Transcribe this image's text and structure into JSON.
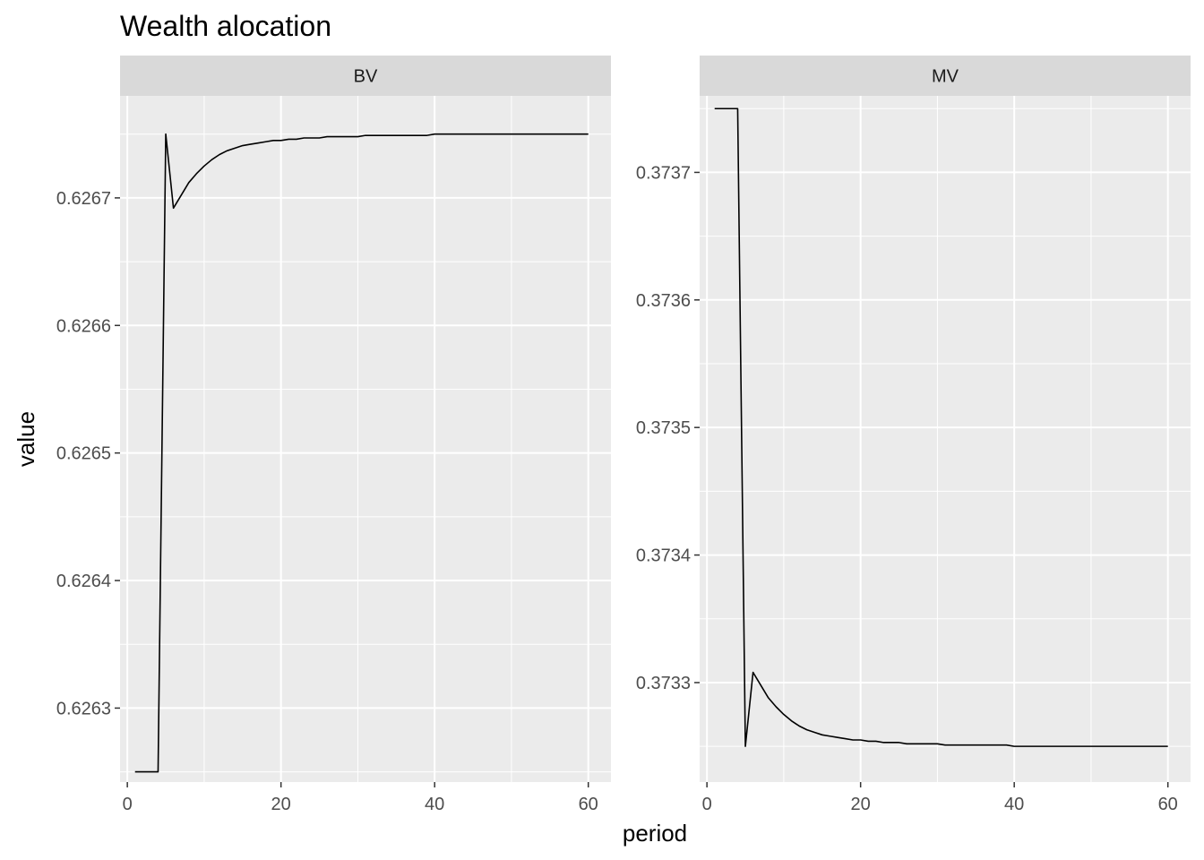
{
  "chart_data": {
    "type": "line",
    "title": "Wealth alocation",
    "xlabel": "period",
    "ylabel": "value",
    "colors": {
      "panel_bg": "#ebebeb",
      "strip_bg": "#d9d9d9",
      "grid": "#ffffff",
      "line": "#000000"
    },
    "panels": [
      {
        "strip": "BV",
        "xlim": [
          -0.95,
          62.95
        ],
        "xticks": [
          0,
          20,
          40,
          60
        ],
        "xtick_labels": [
          "0",
          "20",
          "40",
          "60"
        ],
        "ylim": [
          0.626242,
          0.62678
        ],
        "yticks": [
          0.6263,
          0.6264,
          0.6265,
          0.6266,
          0.6267
        ],
        "ytick_labels": [
          "0.6263",
          "0.6264",
          "0.6265",
          "0.6266",
          "0.6267"
        ],
        "x": [
          1,
          2,
          3,
          4,
          5,
          6,
          7,
          8,
          9,
          10,
          11,
          12,
          13,
          14,
          15,
          16,
          17,
          18,
          19,
          20,
          21,
          22,
          23,
          24,
          25,
          26,
          27,
          28,
          29,
          30,
          31,
          32,
          33,
          34,
          35,
          36,
          37,
          38,
          39,
          40,
          41,
          42,
          43,
          44,
          45,
          46,
          47,
          48,
          49,
          50,
          51,
          52,
          53,
          54,
          55,
          56,
          57,
          58,
          59,
          60
        ],
        "y": [
          0.62625,
          0.62625,
          0.62625,
          0.62625,
          0.62675,
          0.626692,
          0.626702,
          0.626712,
          0.626719,
          0.626725,
          0.62673,
          0.626734,
          0.626737,
          0.626739,
          0.626741,
          0.626742,
          0.626743,
          0.626744,
          0.626745,
          0.626745,
          0.626746,
          0.626746,
          0.626747,
          0.626747,
          0.626747,
          0.626748,
          0.626748,
          0.626748,
          0.626748,
          0.626748,
          0.626749,
          0.626749,
          0.626749,
          0.626749,
          0.626749,
          0.626749,
          0.626749,
          0.626749,
          0.626749,
          0.62675,
          0.62675,
          0.62675,
          0.62675,
          0.62675,
          0.62675,
          0.62675,
          0.62675,
          0.62675,
          0.62675,
          0.62675,
          0.62675,
          0.62675,
          0.62675,
          0.62675,
          0.62675,
          0.62675,
          0.62675,
          0.62675,
          0.62675,
          0.62675
        ]
      },
      {
        "strip": "MV",
        "xlim": [
          -0.95,
          62.95
        ],
        "xticks": [
          0,
          20,
          40,
          60
        ],
        "xtick_labels": [
          "0",
          "20",
          "40",
          "60"
        ],
        "ylim": [
          0.373222,
          0.37376
        ],
        "yticks": [
          0.3733,
          0.3734,
          0.3735,
          0.3736,
          0.3737
        ],
        "ytick_labels": [
          "0.3733",
          "0.3734",
          "0.3735",
          "0.3736",
          "0.3737"
        ],
        "x": [
          1,
          2,
          3,
          4,
          5,
          6,
          7,
          8,
          9,
          10,
          11,
          12,
          13,
          14,
          15,
          16,
          17,
          18,
          19,
          20,
          21,
          22,
          23,
          24,
          25,
          26,
          27,
          28,
          29,
          30,
          31,
          32,
          33,
          34,
          35,
          36,
          37,
          38,
          39,
          40,
          41,
          42,
          43,
          44,
          45,
          46,
          47,
          48,
          49,
          50,
          51,
          52,
          53,
          54,
          55,
          56,
          57,
          58,
          59,
          60
        ],
        "y": [
          0.37375,
          0.37375,
          0.37375,
          0.37375,
          0.37325,
          0.373308,
          0.373298,
          0.373288,
          0.373281,
          0.373275,
          0.37327,
          0.373266,
          0.373263,
          0.373261,
          0.373259,
          0.373258,
          0.373257,
          0.373256,
          0.373255,
          0.373255,
          0.373254,
          0.373254,
          0.373253,
          0.373253,
          0.373253,
          0.373252,
          0.373252,
          0.373252,
          0.373252,
          0.373252,
          0.373251,
          0.373251,
          0.373251,
          0.373251,
          0.373251,
          0.373251,
          0.373251,
          0.373251,
          0.373251,
          0.37325,
          0.37325,
          0.37325,
          0.37325,
          0.37325,
          0.37325,
          0.37325,
          0.37325,
          0.37325,
          0.37325,
          0.37325,
          0.37325,
          0.37325,
          0.37325,
          0.37325,
          0.37325,
          0.37325,
          0.37325,
          0.37325,
          0.37325,
          0.37325
        ]
      }
    ]
  }
}
